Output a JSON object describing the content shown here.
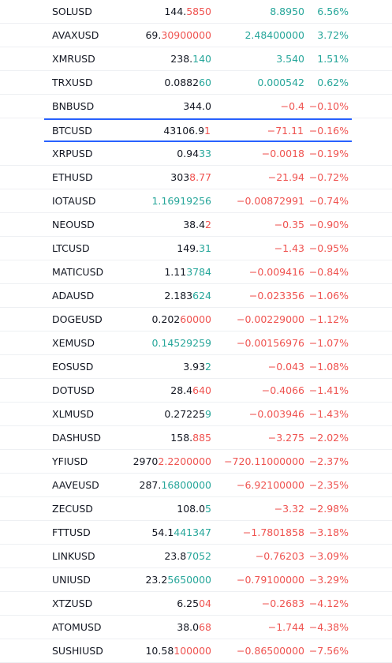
{
  "colors": {
    "up": "#26a69a",
    "down": "#ef5350",
    "text": "#131722",
    "selection": "#2962ff",
    "divider": "#eef0f3"
  },
  "rows": [
    {
      "symbol": "SOLUSD",
      "last_a": "144.",
      "last_b": "5850",
      "last_dir": "down",
      "chg": "8.8950",
      "chgp": "6.56%",
      "dir": "up"
    },
    {
      "symbol": "AVAXUSD",
      "last_a": "69.",
      "last_b": "30900000",
      "last_dir": "down",
      "chg": "2.48400000",
      "chgp": "3.72%",
      "dir": "up"
    },
    {
      "symbol": "XMRUSD",
      "last_a": "238.",
      "last_b": "140",
      "last_dir": "up",
      "chg": "3.540",
      "chgp": "1.51%",
      "dir": "up"
    },
    {
      "symbol": "TRXUSD",
      "last_a": "0.0882",
      "last_b": "60",
      "last_dir": "up",
      "chg": "0.000542",
      "chgp": "0.62%",
      "dir": "up"
    },
    {
      "symbol": "BNBUSD",
      "last_a": "344.0",
      "last_b": "",
      "last_dir": "down",
      "chg": "−0.4",
      "chgp": "−0.10%",
      "dir": "down"
    },
    {
      "symbol": "BTCUSD",
      "last_a": "43106.9",
      "last_b": "1",
      "last_dir": "down",
      "chg": "−71.11",
      "chgp": "−0.16%",
      "dir": "down",
      "selected": true
    },
    {
      "symbol": "XRPUSD",
      "last_a": "0.94",
      "last_b": "33",
      "last_dir": "up",
      "chg": "−0.0018",
      "chgp": "−0.19%",
      "dir": "down"
    },
    {
      "symbol": "ETHUSD",
      "last_a": "303",
      "last_b": "8.77",
      "last_dir": "down",
      "chg": "−21.94",
      "chgp": "−0.72%",
      "dir": "down"
    },
    {
      "symbol": "IOTAUSD",
      "last_a": "",
      "last_b": "1.16919256",
      "last_dir": "up",
      "chg": "−0.00872991",
      "chgp": "−0.74%",
      "dir": "down"
    },
    {
      "symbol": "NEOUSD",
      "last_a": "38.4",
      "last_b": "2",
      "last_dir": "down",
      "chg": "−0.35",
      "chgp": "−0.90%",
      "dir": "down"
    },
    {
      "symbol": "LTCUSD",
      "last_a": "149.",
      "last_b": "31",
      "last_dir": "up",
      "chg": "−1.43",
      "chgp": "−0.95%",
      "dir": "down"
    },
    {
      "symbol": "MATICUSD",
      "last_a": "1.11",
      "last_b": "3784",
      "last_dir": "up",
      "chg": "−0.009416",
      "chgp": "−0.84%",
      "dir": "down"
    },
    {
      "symbol": "ADAUSD",
      "last_a": "2.183",
      "last_b": "624",
      "last_dir": "up",
      "chg": "−0.023356",
      "chgp": "−1.06%",
      "dir": "down"
    },
    {
      "symbol": "DOGEUSD",
      "last_a": "0.202",
      "last_b": "60000",
      "last_dir": "down",
      "chg": "−0.00229000",
      "chgp": "−1.12%",
      "dir": "down"
    },
    {
      "symbol": "XEMUSD",
      "last_a": "",
      "last_b": "0.14529259",
      "last_dir": "up",
      "chg": "−0.00156976",
      "chgp": "−1.07%",
      "dir": "down"
    },
    {
      "symbol": "EOSUSD",
      "last_a": "3.93",
      "last_b": "2",
      "last_dir": "up",
      "chg": "−0.043",
      "chgp": "−1.08%",
      "dir": "down"
    },
    {
      "symbol": "DOTUSD",
      "last_a": "28.4",
      "last_b": "640",
      "last_dir": "down",
      "chg": "−0.4066",
      "chgp": "−1.41%",
      "dir": "down"
    },
    {
      "symbol": "XLMUSD",
      "last_a": "0.27225",
      "last_b": "9",
      "last_dir": "up",
      "chg": "−0.003946",
      "chgp": "−1.43%",
      "dir": "down"
    },
    {
      "symbol": "DASHUSD",
      "last_a": "158.",
      "last_b": "885",
      "last_dir": "down",
      "chg": "−3.275",
      "chgp": "−2.02%",
      "dir": "down"
    },
    {
      "symbol": "YFIUSD",
      "last_a": "2970",
      "last_b": "2.2200000",
      "last_dir": "down",
      "chg": "−720.11000000",
      "chgp": "−2.37%",
      "dir": "down"
    },
    {
      "symbol": "AAVEUSD",
      "last_a": "287.",
      "last_b": "16800000",
      "last_dir": "up",
      "chg": "−6.92100000",
      "chgp": "−2.35%",
      "dir": "down"
    },
    {
      "symbol": "ZECUSD",
      "last_a": "108.0",
      "last_b": "5",
      "last_dir": "up",
      "chg": "−3.32",
      "chgp": "−2.98%",
      "dir": "down"
    },
    {
      "symbol": "FTTUSD",
      "last_a": "54.1",
      "last_b": "441347",
      "last_dir": "up",
      "chg": "−1.7801858",
      "chgp": "−3.18%",
      "dir": "down"
    },
    {
      "symbol": "LINKUSD",
      "last_a": "23.8",
      "last_b": "7052",
      "last_dir": "up",
      "chg": "−0.76203",
      "chgp": "−3.09%",
      "dir": "down"
    },
    {
      "symbol": "UNIUSD",
      "last_a": "23.2",
      "last_b": "5650000",
      "last_dir": "up",
      "chg": "−0.79100000",
      "chgp": "−3.29%",
      "dir": "down"
    },
    {
      "symbol": "XTZUSD",
      "last_a": "6.25",
      "last_b": "04",
      "last_dir": "down",
      "chg": "−0.2683",
      "chgp": "−4.12%",
      "dir": "down"
    },
    {
      "symbol": "ATOMUSD",
      "last_a": "38.0",
      "last_b": "68",
      "last_dir": "down",
      "chg": "−1.744",
      "chgp": "−4.38%",
      "dir": "down"
    },
    {
      "symbol": "SUSHIUSD",
      "last_a": "10.58",
      "last_b": "100000",
      "last_dir": "down",
      "chg": "−0.86500000",
      "chgp": "−7.56%",
      "dir": "down"
    }
  ]
}
